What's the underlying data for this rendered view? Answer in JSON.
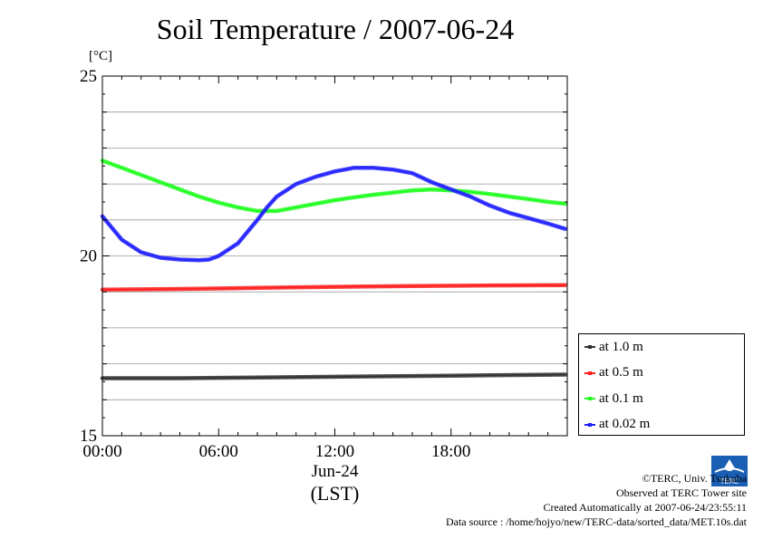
{
  "title": "Soil Temperature / 2007-06-24",
  "unit_label": "[°C]",
  "credits": {
    "copyright": "©TERC, Univ. Tsukuba",
    "site": "Observed at TERC Tower site",
    "created": "Created Automatically at 2007-06-24/23:55:11",
    "source": "Data source : /home/hojyo/new/TERC-data/sorted_data/MET.10s.dat"
  },
  "logo_text": "TERC",
  "chart_data": {
    "type": "line",
    "title": "Soil Temperature / 2007-06-24",
    "ylabel": "[°C]",
    "xlabel": "(LST)",
    "date_label": "Jun-24",
    "xlim": [
      0,
      24
    ],
    "ylim": [
      15,
      25
    ],
    "yticks": [
      "15",
      "20",
      "25"
    ],
    "xticks": [
      {
        "value": 0,
        "label": "00:00"
      },
      {
        "value": 6,
        "label": "06:00"
      },
      {
        "value": 12,
        "label": "12:00"
      },
      {
        "value": 18,
        "label": "18:00"
      }
    ],
    "grid": true,
    "legend_position": "right",
    "series": [
      {
        "name": "at 1.0 m",
        "color": "#303030",
        "x": [
          0,
          4,
          8,
          12,
          16,
          20,
          23.9
        ],
        "y": [
          16.6,
          16.6,
          16.62,
          16.64,
          16.66,
          16.68,
          16.7
        ]
      },
      {
        "name": "at 0.5 m",
        "color": "#ff2020",
        "x": [
          0,
          4,
          8,
          12,
          16,
          20,
          23.9
        ],
        "y": [
          19.06,
          19.08,
          19.11,
          19.14,
          19.16,
          19.18,
          19.19
        ]
      },
      {
        "name": "at 0.1 m",
        "color": "#20ff20",
        "x": [
          0,
          1,
          2,
          3,
          4,
          5,
          6,
          7,
          8,
          9,
          10,
          11,
          12,
          13,
          14,
          15,
          16,
          17,
          18,
          19,
          20,
          21,
          22,
          23,
          23.9
        ],
        "y": [
          22.65,
          22.45,
          22.25,
          22.05,
          21.85,
          21.65,
          21.48,
          21.35,
          21.25,
          21.25,
          21.35,
          21.45,
          21.55,
          21.63,
          21.7,
          21.76,
          21.82,
          21.85,
          21.82,
          21.78,
          21.72,
          21.65,
          21.58,
          21.5,
          21.45
        ]
      },
      {
        "name": "at 0.02 m",
        "color": "#2020ff",
        "x": [
          0,
          1,
          2,
          3,
          4,
          5,
          5.5,
          6,
          7,
          8,
          8.5,
          9,
          10,
          11,
          12,
          13,
          14,
          15,
          16,
          17,
          18,
          19,
          20,
          21,
          22,
          23,
          23.9
        ],
        "y": [
          21.1,
          20.45,
          20.1,
          19.95,
          19.9,
          19.88,
          19.9,
          20.0,
          20.35,
          21.0,
          21.35,
          21.65,
          22.0,
          22.2,
          22.35,
          22.45,
          22.45,
          22.4,
          22.3,
          22.05,
          21.85,
          21.65,
          21.4,
          21.2,
          21.05,
          20.9,
          20.75
        ]
      }
    ]
  }
}
